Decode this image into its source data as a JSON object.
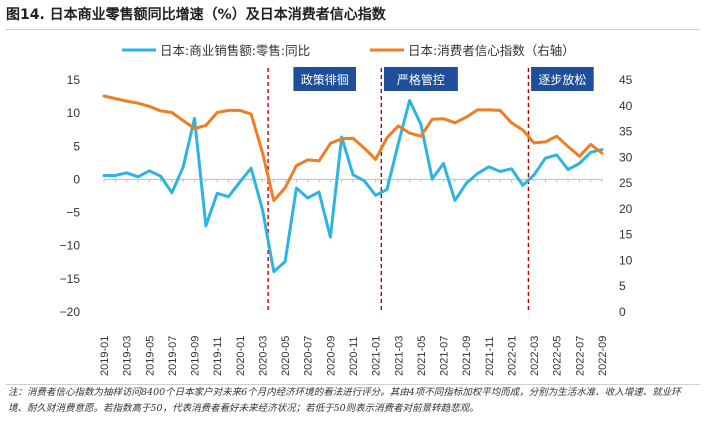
{
  "page": {
    "title": "图14. 日本商业零售额同比增速（%）及日本消费者信心指数",
    "note": "注：消费者信心指数为抽样访问8400个日本家户对未来6个月内经济环境的看法进行评分。其由4项不同指标加权平均而成，分别为生活水准、收入增速、就业环境、耐久财消费意愿。若指数高于50，代表消费者看好未来经济状况；若低于50则表示消费者对前景转趋悲观。"
  },
  "chart_data": {
    "type": "line",
    "title": "",
    "categories": [
      "2019-01",
      "2019-02",
      "2019-03",
      "2019-04",
      "2019-05",
      "2019-06",
      "2019-07",
      "2019-08",
      "2019-09",
      "2019-10",
      "2019-11",
      "2019-12",
      "2020-01",
      "2020-02",
      "2020-03",
      "2020-04",
      "2020-05",
      "2020-06",
      "2020-07",
      "2020-08",
      "2020-09",
      "2020-10",
      "2020-11",
      "2020-12",
      "2021-01",
      "2021-02",
      "2021-03",
      "2021-04",
      "2021-05",
      "2021-06",
      "2021-07",
      "2021-08",
      "2021-09",
      "2021-10",
      "2021-11",
      "2021-12",
      "2022-01",
      "2022-02",
      "2022-03",
      "2022-04",
      "2022-05",
      "2022-06",
      "2022-07",
      "2022-08",
      "2022-09"
    ],
    "x_tick_labels": [
      "2019-01",
      "2019-03",
      "2019-05",
      "2019-07",
      "2019-09",
      "2019-11",
      "2020-01",
      "2020-03",
      "2020-05",
      "2020-07",
      "2020-09",
      "2020-11",
      "2021-01",
      "2021-03",
      "2021-05",
      "2021-07",
      "2021-09",
      "2021-11",
      "2022-01",
      "2022-03",
      "2022-05",
      "2022-07",
      "2022-09"
    ],
    "series": [
      {
        "name": "日本:商业销售额:零售:同比",
        "axis": "left",
        "color": "#2eb4e3",
        "values": [
          0.6,
          0.6,
          1.0,
          0.4,
          1.3,
          0.5,
          -2.0,
          1.9,
          9.2,
          -7.0,
          -2.1,
          -2.6,
          -0.4,
          1.7,
          -4.6,
          -13.9,
          -12.4,
          -1.3,
          -2.8,
          -1.9,
          -8.7,
          6.4,
          0.7,
          -0.2,
          -2.4,
          -1.5,
          5.4,
          11.9,
          8.3,
          0.1,
          2.4,
          -3.2,
          -0.6,
          0.9,
          1.9,
          1.2,
          1.6,
          -0.9,
          0.7,
          3.2,
          3.7,
          1.5,
          2.4,
          4.1,
          4.5
        ]
      },
      {
        "name": "日本:消费者信心指数（右轴）",
        "axis": "right",
        "color": "#ef7d22",
        "values": [
          41.9,
          41.4,
          40.9,
          40.5,
          39.9,
          39.0,
          38.7,
          37.1,
          35.6,
          36.2,
          38.7,
          39.1,
          39.1,
          38.4,
          30.9,
          21.6,
          24.1,
          28.4,
          29.5,
          29.3,
          32.7,
          33.6,
          33.7,
          31.8,
          29.6,
          33.8,
          36.1,
          34.7,
          34.1,
          37.4,
          37.5,
          36.7,
          37.8,
          39.2,
          39.2,
          39.1,
          36.7,
          35.3,
          32.8,
          33.0,
          34.1,
          32.1,
          30.2,
          32.5,
          30.8
        ]
      }
    ],
    "y_left": {
      "min": -20,
      "max": 15,
      "ticks": [
        15,
        10,
        5,
        0,
        -5,
        -10,
        -15,
        -20
      ]
    },
    "y_right": {
      "min": 0,
      "max": 45,
      "ticks": [
        45,
        40,
        35,
        30,
        25,
        20,
        15,
        10,
        5,
        0
      ]
    },
    "vlines": [
      "2020-03",
      "2021-01",
      "2022-02"
    ],
    "phases": [
      {
        "label": "政策徘徊",
        "from": "2020-06",
        "to": "2020-11"
      },
      {
        "label": "严格管控",
        "from": "2021-02",
        "to": "2021-08"
      },
      {
        "label": "逐步放松",
        "from": "2022-03",
        "to": "2022-08"
      }
    ],
    "legend_position": "top",
    "grid": false
  }
}
